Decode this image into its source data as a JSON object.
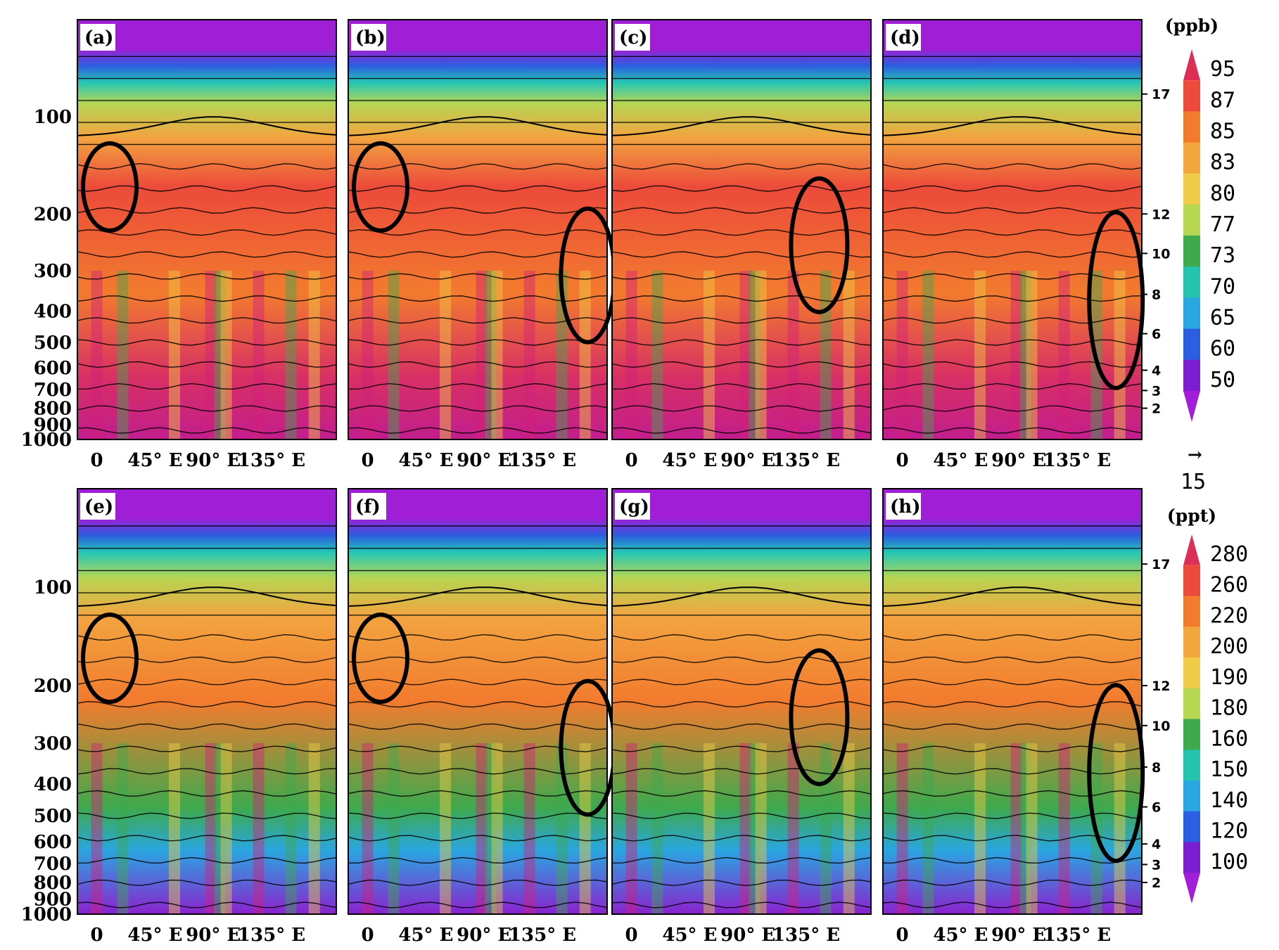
{
  "chart_data": {
    "type": "heatmap",
    "panels": [
      {
        "label": "(a)",
        "variable": "ppb",
        "highlight_longitude": "10° E"
      },
      {
        "label": "(b)",
        "variable": "ppb",
        "highlight_longitude": "10° E / 170° E"
      },
      {
        "label": "(c)",
        "variable": "ppb",
        "highlight_longitude": "145° E"
      },
      {
        "label": "(d)",
        "variable": "ppb",
        "highlight_longitude": "165° E"
      },
      {
        "label": "(e)",
        "variable": "ppt",
        "highlight_longitude": "10° E"
      },
      {
        "label": "(f)",
        "variable": "ppt",
        "highlight_longitude": "10° E / 170° E"
      },
      {
        "label": "(g)",
        "variable": "ppt",
        "highlight_longitude": "145° E"
      },
      {
        "label": "(h)",
        "variable": "ppt",
        "highlight_longitude": "165° E"
      }
    ],
    "y_axis": {
      "scale": "log",
      "ticks": [
        "100",
        "200",
        "300",
        "400",
        "500",
        "600",
        "700",
        "800",
        "900",
        "1000"
      ],
      "range": [
        50,
        1000
      ]
    },
    "y2_axis": {
      "ticks": [
        "17",
        "12",
        "10",
        "8",
        "6",
        "4",
        "3",
        "2"
      ]
    },
    "x_axis": {
      "ticks": [
        "0",
        "45° E",
        "90° E",
        "135° E"
      ],
      "range": [
        -15,
        185
      ]
    },
    "colorbars": [
      {
        "unit": "(ppb)",
        "levels": [
          "95",
          "87",
          "85",
          "83",
          "80",
          "77",
          "73",
          "70",
          "65",
          "60",
          "50"
        ],
        "colors": [
          "#dd2f55",
          "#ec4a3a",
          "#f27b2e",
          "#f4a63e",
          "#f0cb47",
          "#b7d653",
          "#3ea94d",
          "#24c3b0",
          "#2aa6e0",
          "#2b5ee0",
          "#7d1dd0",
          "#a31ed8"
        ]
      },
      {
        "unit": "(ppt)",
        "levels": [
          "280",
          "260",
          "220",
          "200",
          "190",
          "180",
          "160",
          "150",
          "140",
          "120",
          "100"
        ],
        "colors": [
          "#dd2f55",
          "#ec4a3a",
          "#f27b2e",
          "#f4a63e",
          "#f0cb47",
          "#b7d653",
          "#3ea94d",
          "#24c3b0",
          "#2aa6e0",
          "#2b5ee0",
          "#7d1dd0",
          "#a31ed8"
        ]
      }
    ],
    "vector_reference": {
      "value": "15",
      "arrow": "→"
    }
  }
}
